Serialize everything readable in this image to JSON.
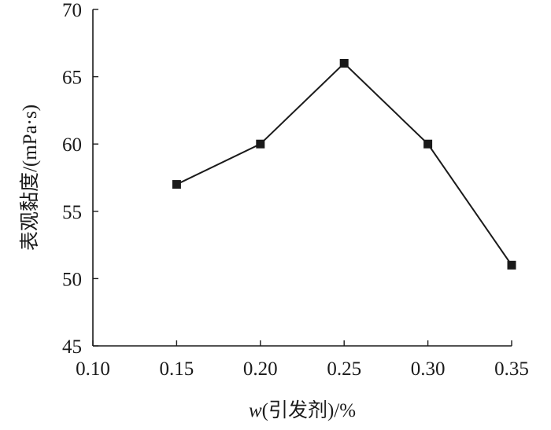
{
  "chart_data": {
    "type": "line",
    "title": "",
    "xlabel_italic": "w",
    "xlabel_rest": "(引发剂)/%",
    "ylabel": "表观黏度/(mPa·s)",
    "xlim": [
      0.1,
      0.35
    ],
    "ylim": [
      45,
      70
    ],
    "x_ticks": [
      "0.10",
      "0.15",
      "0.20",
      "0.25",
      "0.30",
      "0.35"
    ],
    "y_ticks": [
      "45",
      "50",
      "55",
      "60",
      "65",
      "70"
    ],
    "grid": false,
    "legend": "none",
    "series": [
      {
        "x": [
          0.15,
          0.2,
          0.25,
          0.3,
          0.35
        ],
        "y": [
          57,
          60,
          66,
          60,
          51
        ],
        "marker": "square",
        "color": "#1a1a1a"
      }
    ]
  }
}
